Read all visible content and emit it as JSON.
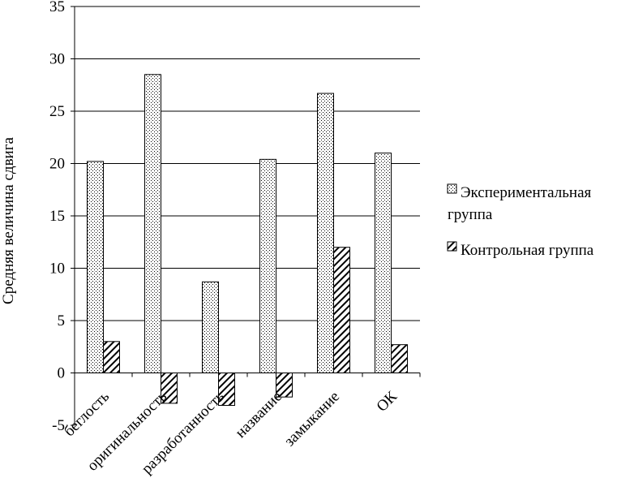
{
  "chart_data": {
    "type": "bar",
    "title": "",
    "xlabel": "",
    "ylabel": "Средняя величина сдвига",
    "ylim": [
      -5,
      35
    ],
    "yticks": [
      -5,
      0,
      5,
      10,
      15,
      20,
      25,
      30,
      35
    ],
    "grid": true,
    "legend_position": "right",
    "categories": [
      "беглость",
      "оригинальность",
      "разработанность",
      "название",
      "замыкание",
      "ОК"
    ],
    "series": [
      {
        "name": "Экспериментальная группа",
        "pattern": "dots",
        "values": [
          20.2,
          28.5,
          8.7,
          20.4,
          26.7,
          21.0
        ]
      },
      {
        "name": "Контрольная группа",
        "pattern": "hatch",
        "values": [
          3.0,
          -2.9,
          -3.1,
          -2.3,
          12.0,
          2.7
        ]
      }
    ],
    "legend_lines": [
      [
        "Экспериментальная",
        "группа"
      ],
      [
        "Контрольная группа"
      ]
    ]
  }
}
